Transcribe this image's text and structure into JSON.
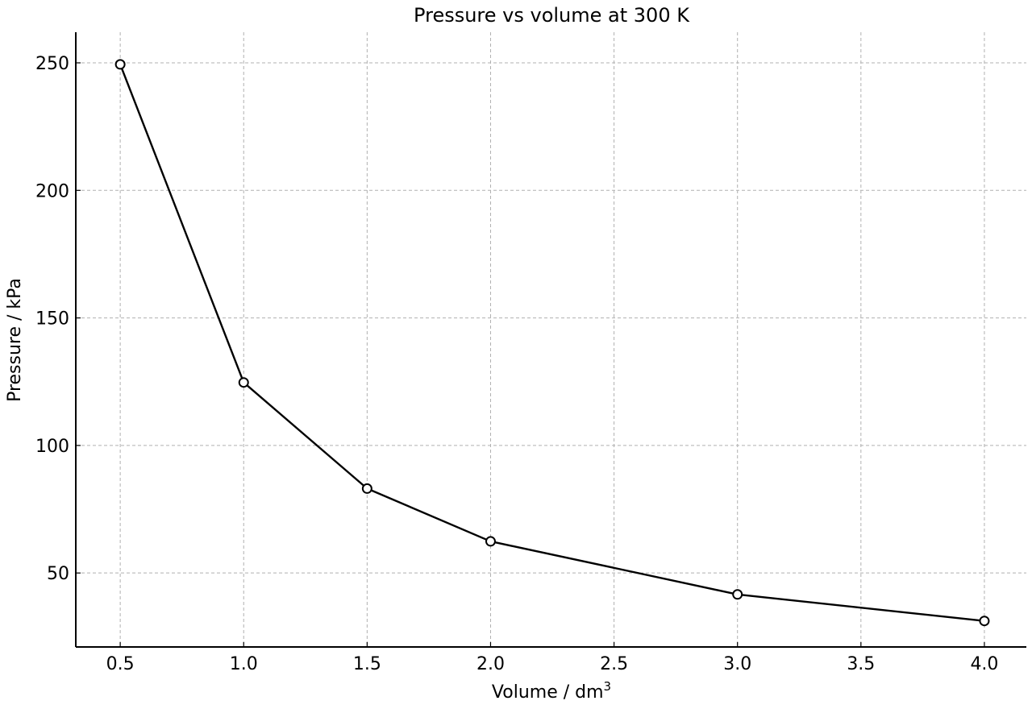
{
  "chart_data": {
    "type": "line",
    "title": "Pressure vs volume at 300 K",
    "xlabel": "Volume / dm",
    "xlabel_superscript": "3",
    "ylabel": "Pressure / kPa",
    "xlim": [
      0.32,
      4.17
    ],
    "ylim": [
      21,
      262
    ],
    "x_ticks": [
      "0.5",
      "1.0",
      "1.5",
      "2.0",
      "2.5",
      "3.0",
      "3.5",
      "4.0"
    ],
    "y_ticks": [
      "50",
      "100",
      "150",
      "200",
      "250"
    ],
    "grid": true,
    "series": [
      {
        "x": [
          0.5,
          1.0,
          1.5,
          2.0,
          3.0,
          4.0
        ],
        "y": [
          249.4,
          124.7,
          83.1,
          62.4,
          41.6,
          31.2
        ]
      }
    ],
    "colors": {
      "line": "#000000",
      "marker_fill": "#ffffff",
      "grid": "#b0b0b0",
      "axis": "#000000"
    },
    "marker": "circle-open"
  }
}
